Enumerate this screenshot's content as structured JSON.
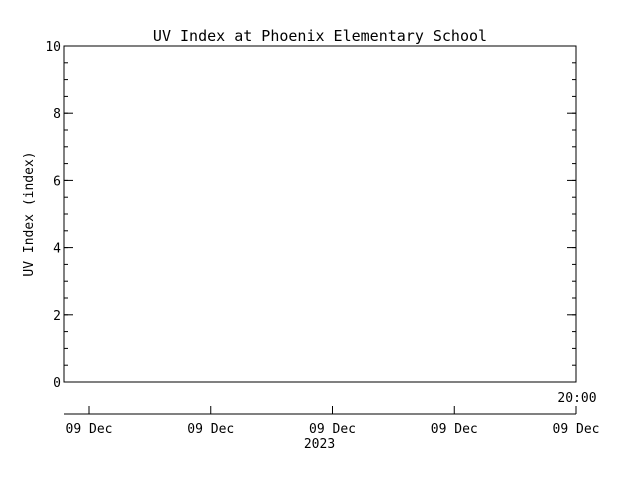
{
  "chart_data": {
    "type": "line",
    "title": "UV Index at Phoenix Elementary School",
    "ylabel": "UV Index (index)",
    "xlabel": "",
    "ylim": [
      0,
      10
    ],
    "yticks_major": [
      0,
      2,
      4,
      6,
      8,
      10
    ],
    "yticks_minor_step": 0.5,
    "time_axis": {
      "inner_label": "20:00",
      "tick_labels": [
        "09 Dec",
        "09 Dec",
        "09 Dec",
        "09 Dec",
        "09 Dec"
      ],
      "year_label": "2023"
    },
    "series": [],
    "grid": false,
    "legend": "none"
  },
  "colors": {
    "background": "#ffffff",
    "foreground": "#000000"
  }
}
